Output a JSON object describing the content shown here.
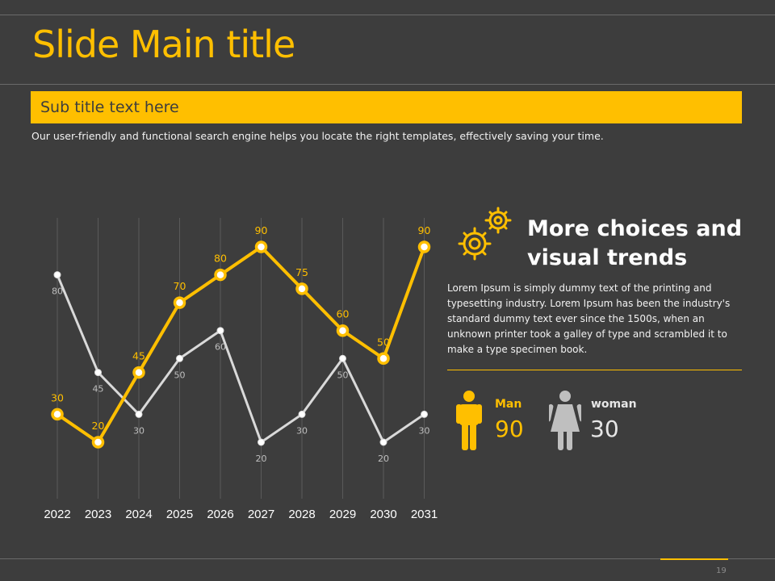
{
  "slide": {
    "title": "Slide Main title",
    "subtitle": "Sub title text here",
    "description": "Our user-friendly and functional search engine helps you locate the right templates, effectively saving your time.",
    "page_number": "19"
  },
  "info": {
    "heading_line1": "More choices and",
    "heading_line2": "visual trends",
    "body": "Lorem Ipsum is simply dummy text of the printing and typesetting industry. Lorem Ipsum has been the industry's standard dummy text ever since the 1500s, when an unknown printer took a galley of type and scrambled it to make a type specimen book.",
    "icon": "gears-icon"
  },
  "stats": [
    {
      "label": "Man",
      "value": "90",
      "icon": "man-icon",
      "color": "#ffbf00"
    },
    {
      "label": "woman",
      "value": "30",
      "icon": "woman-icon",
      "color": "#bfbfbf"
    }
  ],
  "colors": {
    "accent": "#ffbf00",
    "background": "#3d3d3d",
    "secondary": "#d9d9d9"
  },
  "chart_data": {
    "type": "line",
    "categories": [
      "2022",
      "2023",
      "2024",
      "2025",
      "2026",
      "2027",
      "2028",
      "2029",
      "2030",
      "2031"
    ],
    "series": [
      {
        "values": [
          30,
          20,
          45,
          70,
          80,
          90,
          75,
          60,
          50,
          90
        ],
        "color": "#ffbf00"
      },
      {
        "values": [
          80,
          45,
          30,
          50,
          60,
          20,
          30,
          50,
          20,
          30
        ],
        "color": "#d9d9d9"
      }
    ],
    "ylim": [
      15,
      100
    ],
    "grid": "vertical",
    "legend": "none"
  }
}
